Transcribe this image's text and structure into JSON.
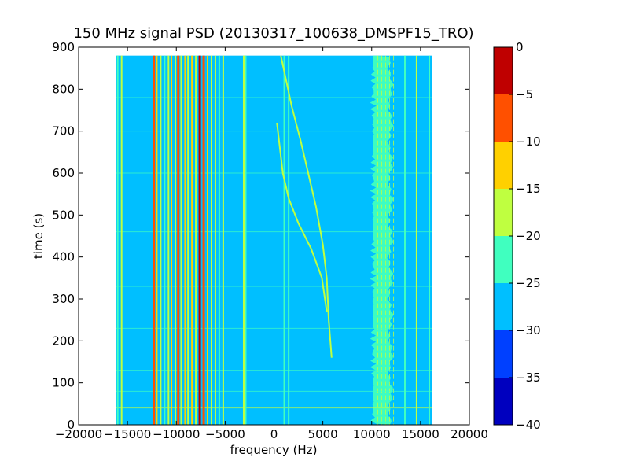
{
  "chart_data": {
    "type": "heatmap",
    "title": "150 MHz signal PSD (20130317_100638_DMSPF15_TRO)",
    "xlabel": "frequency (Hz)",
    "ylabel": "time (s)",
    "xlim": [
      -20000,
      20000
    ],
    "ylim": [
      0,
      900
    ],
    "xticks": [
      -20000,
      -15000,
      -10000,
      -5000,
      0,
      5000,
      10000,
      15000,
      20000
    ],
    "yticks": [
      0,
      100,
      200,
      300,
      400,
      500,
      600,
      700,
      800,
      900
    ],
    "x_tick_labels": [
      "−20000",
      "−15000",
      "−10000",
      "−5000",
      "0",
      "5000",
      "10000",
      "15000",
      "20000"
    ],
    "y_tick_labels": [
      "0",
      "100",
      "200",
      "300",
      "400",
      "500",
      "600",
      "700",
      "800",
      "900"
    ],
    "data_extent": {
      "x": [
        -16200,
        16200
      ],
      "y": [
        0,
        880
      ]
    },
    "background_level_db": -27.5,
    "colorbar": {
      "levels": [
        -40,
        -35,
        -30,
        -25,
        -20,
        -15,
        -10,
        -5,
        0
      ],
      "tick_labels": [
        "−40",
        "−35",
        "−30",
        "−25",
        "−20",
        "−15",
        "−10",
        "−5",
        "0"
      ],
      "colors": [
        "#0000bf",
        "#0040ff",
        "#00bfff",
        "#40ffbf",
        "#bfff40",
        "#ffd000",
        "#ff5000",
        "#bf0000"
      ]
    },
    "vertical_lines": [
      {
        "x": -16000,
        "level": -22.5
      },
      {
        "x": -15600,
        "level": -20
      },
      {
        "x": -12300,
        "level": -7.5
      },
      {
        "x": -12000,
        "level": -12.5
      },
      {
        "x": -11600,
        "level": -17.5
      },
      {
        "x": -11200,
        "level": -22.5
      },
      {
        "x": -10800,
        "level": -17.5
      },
      {
        "x": -10500,
        "level": -12.5
      },
      {
        "x": -10100,
        "level": -17.5
      },
      {
        "x": -9800,
        "level": -7.5
      },
      {
        "x": -9500,
        "level": -17.5
      },
      {
        "x": -9100,
        "level": -12.5
      },
      {
        "x": -8800,
        "level": -17.5
      },
      {
        "x": -8400,
        "level": -12.5
      },
      {
        "x": -8000,
        "level": -17.5
      },
      {
        "x": -7600,
        "level": -2.5
      },
      {
        "x": -7200,
        "level": -7.5
      },
      {
        "x": -6800,
        "level": -12.5
      },
      {
        "x": -6400,
        "level": -17.5
      },
      {
        "x": -6000,
        "level": -17.5
      },
      {
        "x": -5600,
        "level": -22.5
      },
      {
        "x": -5200,
        "level": -17.5
      },
      {
        "x": -3100,
        "level": -17.5
      },
      {
        "x": -2900,
        "level": -22.5
      },
      {
        "x": 1050,
        "level": -22.5
      },
      {
        "x": 1500,
        "level": -22.5
      },
      {
        "x": 13400,
        "level": -22.5
      },
      {
        "x": 14600,
        "level": -17.5
      },
      {
        "x": 15900,
        "level": -22.5
      }
    ],
    "noise_band": {
      "x": [
        9500,
        12400
      ],
      "level": -22.5
    },
    "horizontal_lines": [
      {
        "y": 40,
        "level": -17.5
      },
      {
        "y": 80,
        "level": -22.5
      },
      {
        "y": 130,
        "level": -22.5
      },
      {
        "y": 230,
        "level": -22.5
      },
      {
        "y": 330,
        "level": -22.5
      },
      {
        "y": 460,
        "level": -22.5
      },
      {
        "y": 600,
        "level": -22.5
      },
      {
        "y": 700,
        "level": -22.5
      },
      {
        "y": 780,
        "level": -22.5
      }
    ],
    "curves": [
      {
        "level": -17.5,
        "points": [
          [
            5900,
            160
          ],
          [
            5600,
            250
          ],
          [
            5400,
            350
          ],
          [
            5000,
            430
          ],
          [
            4300,
            520
          ],
          [
            3500,
            600
          ],
          [
            2700,
            680
          ],
          [
            1800,
            760
          ],
          [
            700,
            880
          ]
        ]
      },
      {
        "level": -17.5,
        "points": [
          [
            5400,
            270
          ],
          [
            4900,
            350
          ],
          [
            3800,
            420
          ],
          [
            2500,
            480
          ],
          [
            1500,
            540
          ],
          [
            900,
            600
          ],
          [
            300,
            720
          ]
        ]
      }
    ]
  }
}
